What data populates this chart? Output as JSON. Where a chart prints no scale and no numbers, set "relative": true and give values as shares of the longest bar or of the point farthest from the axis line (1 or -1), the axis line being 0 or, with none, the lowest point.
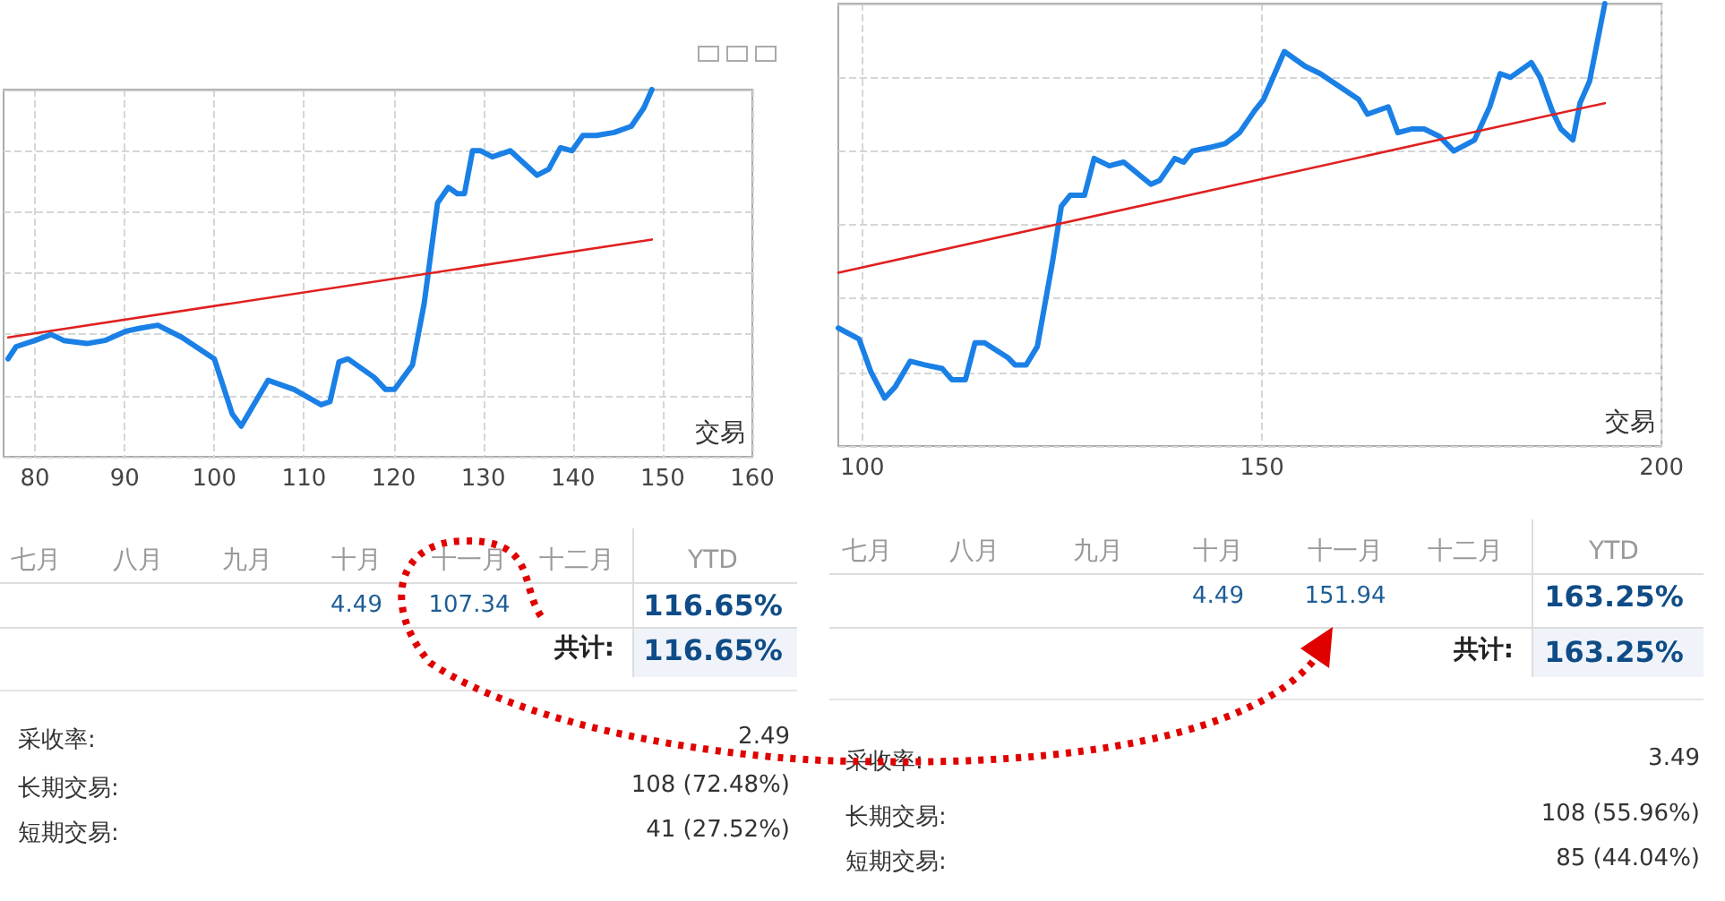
{
  "chart_data": [
    {
      "type": "line",
      "xlabel": "交易",
      "relative": true,
      "xlim": [
        76.5,
        160
      ],
      "xticks": [
        80,
        90,
        100,
        110,
        120,
        130,
        140,
        150,
        160
      ],
      "grid": true,
      "marker": "none",
      "series": [
        {
          "color": "#1a80e6",
          "x": [
            77,
            77.9,
            80,
            81.8,
            83.2,
            85.8,
            87.8,
            90.1,
            91.7,
            93.7,
            96.4,
            100,
            102,
            103,
            106,
            108.9,
            111.9,
            112.9,
            113.9,
            114.9,
            117.8,
            119.1,
            120.1,
            122.1,
            123.4,
            124.9,
            126.1,
            127.1,
            127.9,
            128.8,
            129.7,
            131,
            133,
            136,
            137.3,
            138.6,
            139.9,
            141.1,
            142.6,
            144.6,
            146.5,
            147.9,
            148.8
          ],
          "values": [
            0.12,
            0.16,
            0.18,
            0.2,
            0.18,
            0.17,
            0.18,
            0.21,
            0.22,
            0.23,
            0.19,
            0.12,
            -0.06,
            -0.1,
            0.05,
            0.02,
            -0.03,
            -0.02,
            0.11,
            0.12,
            0.06,
            0.02,
            0.02,
            0.1,
            0.3,
            0.63,
            0.68,
            0.66,
            0.66,
            0.8,
            0.8,
            0.78,
            0.8,
            0.72,
            0.74,
            0.81,
            0.8,
            0.85,
            0.85,
            0.86,
            0.88,
            0.94,
            1
          ]
        },
        {
          "color": "#e02020",
          "x": [
            77,
            148.8
          ],
          "values": [
            0.19,
            0.51
          ]
        }
      ]
    },
    {
      "type": "line",
      "xlabel": "交易",
      "relative": true,
      "xlim": [
        97,
        200
      ],
      "xticks": [
        100,
        150,
        200
      ],
      "grid": true,
      "marker": "none",
      "series": [
        {
          "color": "#1a80e6",
          "x": [
            97,
            99.6,
            101.1,
            102.8,
            104.1,
            106,
            107.8,
            110,
            111.2,
            112.9,
            114.1,
            115.3,
            118.2,
            119.1,
            120.5,
            121.9,
            123.8,
            124.9,
            126,
            127.8,
            129,
            130.9,
            132.7,
            136.1,
            137.2,
            139.1,
            140.2,
            141.3,
            143.5,
            145.4,
            147.2,
            149.1,
            150.2,
            152.8,
            155.4,
            157.3,
            162.1,
            163.2,
            165.8,
            167,
            168.8,
            170.3,
            172.2,
            174,
            176.6,
            178.5,
            179.8,
            181.1,
            183.7,
            184.8,
            186.3,
            187.4,
            188.9,
            189.8,
            191,
            192.9
          ],
          "values": [
            0.12,
            0.09,
            0,
            -0.07,
            -0.04,
            0.03,
            0.02,
            0.01,
            -0.02,
            -0.02,
            0.08,
            0.08,
            0.04,
            0.02,
            0.02,
            0.07,
            0.3,
            0.45,
            0.48,
            0.48,
            0.58,
            0.56,
            0.57,
            0.51,
            0.52,
            0.58,
            0.57,
            0.6,
            0.61,
            0.62,
            0.65,
            0.71,
            0.74,
            0.87,
            0.83,
            0.81,
            0.74,
            0.7,
            0.72,
            0.65,
            0.66,
            0.66,
            0.64,
            0.6,
            0.63,
            0.72,
            0.81,
            0.8,
            0.84,
            0.8,
            0.71,
            0.66,
            0.63,
            0.73,
            0.79,
            1
          ]
        },
        {
          "color": "#e02020",
          "x": [
            97,
            192.9
          ],
          "values": [
            0.27,
            0.73
          ]
        }
      ]
    },
    {
      "type": "other",
      "annotations": [
        "七月",
        "八月",
        "九月",
        "十月",
        "十一月",
        "十二月",
        "YTD",
        "4.49",
        "107.34",
        "116.65%",
        "共计:",
        "116.65%",
        "采收率:",
        "2.49",
        "长期交易:",
        "108 (72.48%)",
        "短期交易:",
        "41 (27.52%)"
      ]
    },
    {
      "type": "other",
      "annotations": [
        "七月",
        "八月",
        "九月",
        "十月",
        "十一月",
        "十二月",
        "YTD",
        "4.49",
        "151.94",
        "163.25%",
        "共计:",
        "163.25%",
        "采收率:",
        "3.49",
        "长期交易:",
        "108 (55.96%)",
        "短期交易:",
        "85 (44.04%)"
      ]
    }
  ]
}
